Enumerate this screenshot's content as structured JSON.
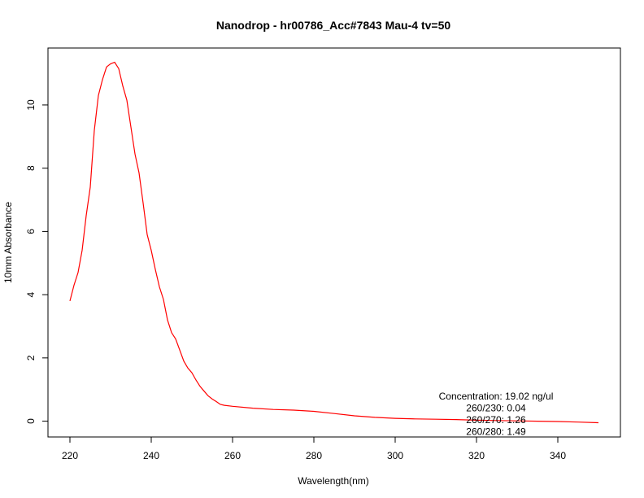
{
  "chart_data": {
    "type": "line",
    "title": "Nanodrop - hr00786_Acc#7843 Mau-4 tv=50",
    "xlabel": "Wavelength(nm)",
    "ylabel": "10mm Absorbance",
    "xlim": [
      214.6,
      355.4
    ],
    "ylim": [
      -0.5,
      11.8
    ],
    "x_ticks": [
      220,
      240,
      260,
      280,
      300,
      320,
      340
    ],
    "y_ticks": [
      0,
      2,
      4,
      6,
      8,
      10
    ],
    "grid": false,
    "series": [
      {
        "color": "#ff0000",
        "x": [
          220,
          221,
          222,
          223,
          224,
          225,
          226,
          227,
          228,
          229,
          230,
          231,
          232,
          233,
          234,
          235,
          236,
          237,
          238,
          239,
          240,
          241,
          242,
          243,
          244,
          245,
          246,
          247,
          248,
          249,
          250,
          251,
          252,
          253,
          254,
          255,
          256,
          257,
          258,
          260,
          265,
          270,
          275,
          280,
          285,
          290,
          295,
          300,
          305,
          310,
          315,
          320,
          325,
          330,
          335,
          340,
          345,
          350
        ],
        "y": [
          3.8,
          4.3,
          4.7,
          5.4,
          6.5,
          7.4,
          9.2,
          10.3,
          10.8,
          11.2,
          11.3,
          11.35,
          11.15,
          10.6,
          10.15,
          9.3,
          8.45,
          7.85,
          6.9,
          5.9,
          5.4,
          4.8,
          4.25,
          3.85,
          3.2,
          2.8,
          2.6,
          2.25,
          1.9,
          1.68,
          1.53,
          1.3,
          1.1,
          0.95,
          0.8,
          0.7,
          0.62,
          0.53,
          0.5,
          0.47,
          0.41,
          0.37,
          0.35,
          0.31,
          0.24,
          0.17,
          0.12,
          0.09,
          0.07,
          0.06,
          0.05,
          0.03,
          0.02,
          0.01,
          0.0,
          -0.01,
          -0.03,
          -0.05
        ]
      }
    ],
    "annotations": [
      "Concentration: 19.02 ng/ul",
      "260/230: 0.04",
      "260/270: 1.26",
      "260/280: 1.49"
    ]
  }
}
